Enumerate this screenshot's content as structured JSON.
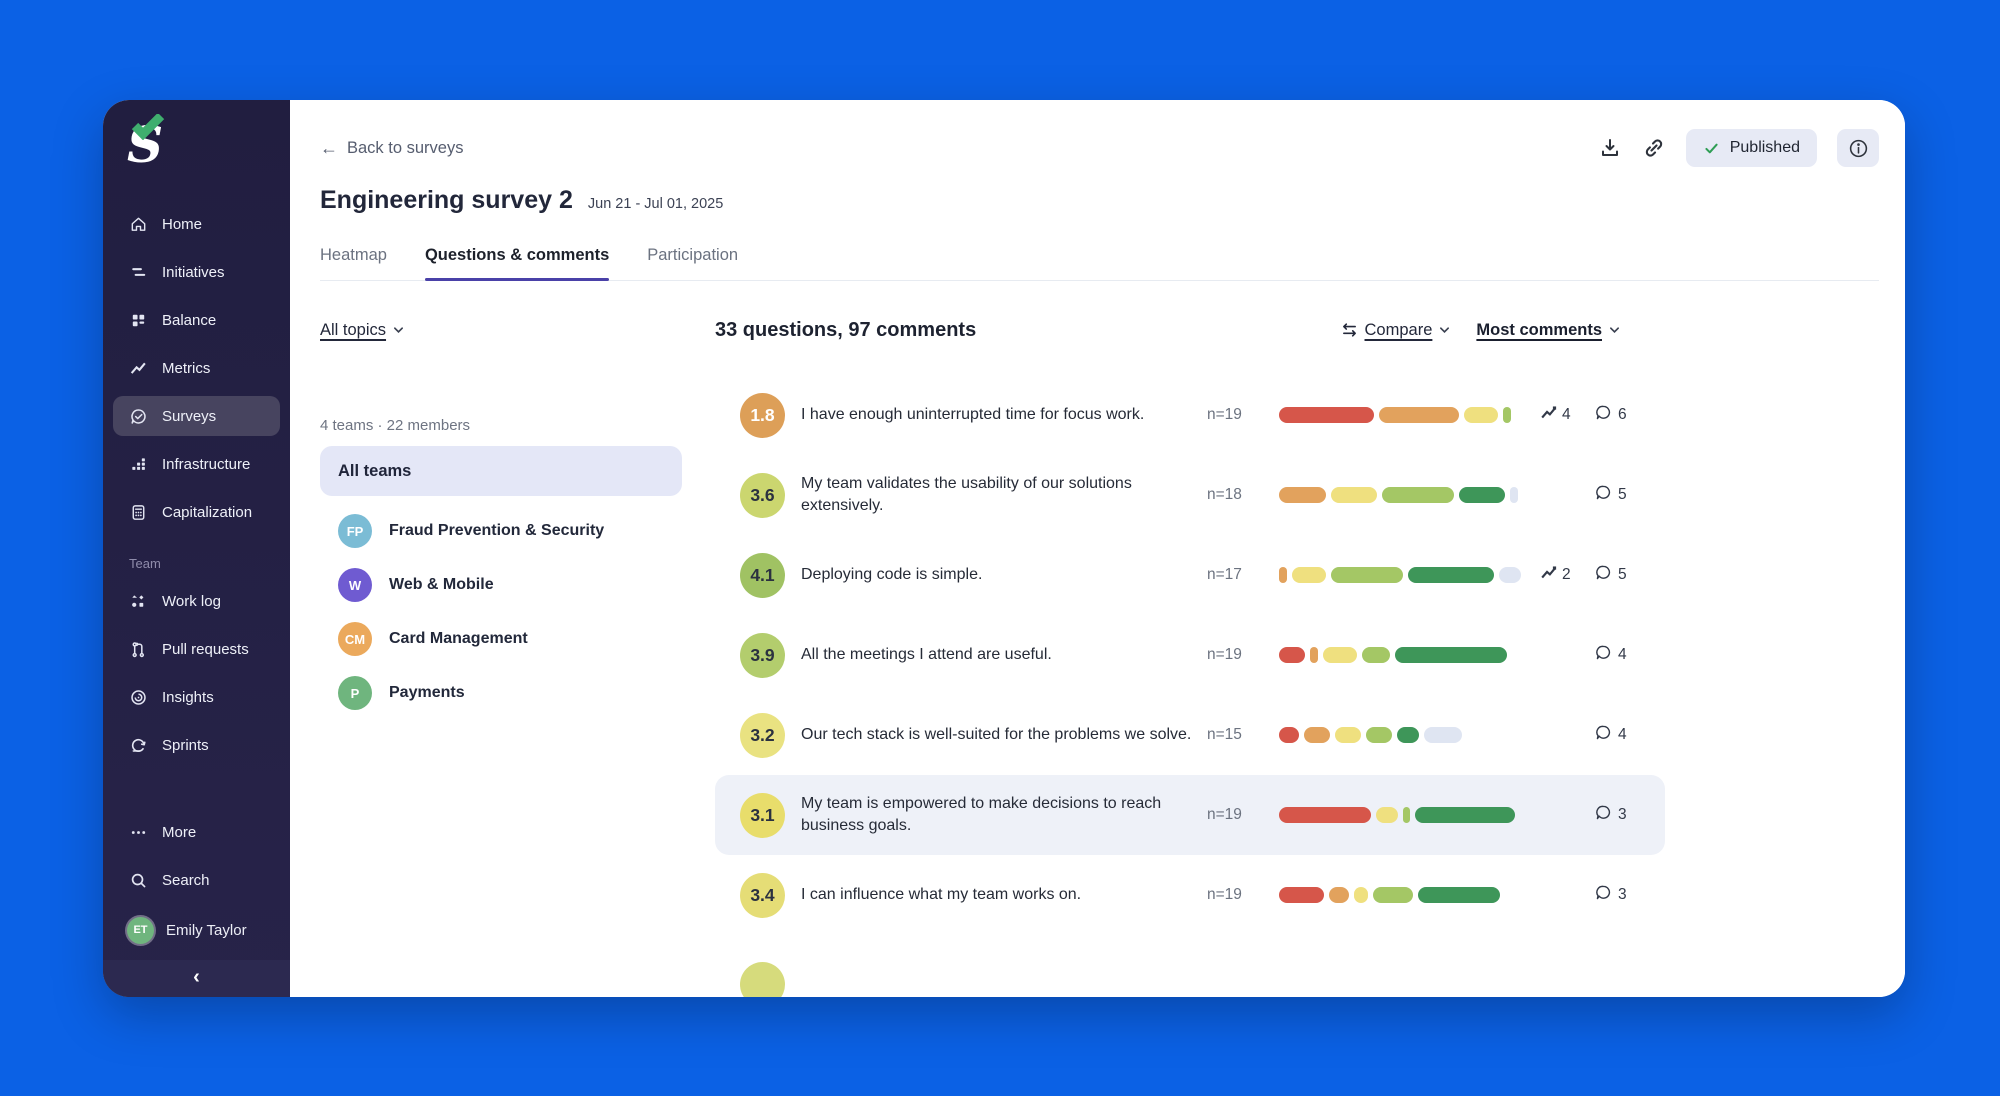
{
  "window": {
    "background_color": "#0b61e5",
    "card_color": "#ffffff"
  },
  "sidebar": {
    "bg_color": "#211e40",
    "active_item_bg": "#47445f",
    "logo": {
      "letter": "S",
      "check_color": "#3fae6e"
    },
    "nav_main": [
      {
        "label": "Home",
        "icon": "home-icon",
        "active": false
      },
      {
        "label": "Initiatives",
        "icon": "initiatives-icon",
        "active": false
      },
      {
        "label": "Balance",
        "icon": "balance-icon",
        "active": false
      },
      {
        "label": "Metrics",
        "icon": "metrics-icon",
        "active": false
      },
      {
        "label": "Surveys",
        "icon": "surveys-icon",
        "active": true
      },
      {
        "label": "Infrastructure",
        "icon": "infrastructure-icon",
        "active": false
      },
      {
        "label": "Capitalization",
        "icon": "capitalization-icon",
        "active": false
      }
    ],
    "team_section_label": "Team",
    "nav_team": [
      {
        "label": "Work log",
        "icon": "work-log-icon",
        "active": false
      },
      {
        "label": "Pull requests",
        "icon": "pull-requests-icon",
        "active": false
      },
      {
        "label": "Insights",
        "icon": "insights-icon",
        "active": false
      },
      {
        "label": "Sprints",
        "icon": "sprints-icon",
        "active": false
      }
    ],
    "nav_bottom": [
      {
        "label": "More",
        "icon": "more-icon",
        "active": false
      },
      {
        "label": "Search",
        "icon": "search-icon",
        "active": false
      }
    ],
    "user": {
      "name": "Emily Taylor",
      "initials": "ET",
      "avatar_color": "#6fb57e"
    },
    "collapse_icon": "chevron-left-icon"
  },
  "header": {
    "back_label": "Back to surveys",
    "title": "Engineering survey 2",
    "date_range": "Jun 21 - Jul 01, 2025",
    "actions": {
      "download_icon": "download-icon",
      "link_icon": "link-icon",
      "status_label": "Published",
      "status_check_color": "#2f9e55",
      "info_icon": "info-icon"
    },
    "tabs": [
      {
        "label": "Heatmap",
        "active": false
      },
      {
        "label": "Questions & comments",
        "active": true
      },
      {
        "label": "Participation",
        "active": false
      }
    ]
  },
  "toolbar": {
    "topics_filter": "All topics",
    "summary": "33 questions, 97 comments",
    "compare_label": "Compare",
    "sort_label": "Most comments"
  },
  "teams_panel": {
    "summary": "4 teams · 22 members",
    "all_teams_label": "All teams",
    "teams": [
      {
        "initials": "FP",
        "name": "Fraud Prevention & Security",
        "color": "#7bbcd5"
      },
      {
        "initials": "W",
        "name": "Web & Mobile",
        "color": "#6f5bd1"
      },
      {
        "initials": "CM",
        "name": "Card Management",
        "color": "#eba95c"
      },
      {
        "initials": "P",
        "name": "Payments",
        "color": "#6fb57e"
      }
    ]
  },
  "scale_colors": {
    "red": "#d6564a",
    "orange": "#e2a25d",
    "yellow": "#efe07f",
    "lightgreen": "#a4c765",
    "green": "#3e9659",
    "none": "#dfe5f2"
  },
  "questions": [
    {
      "score": "1.8",
      "badge_color": "#dd9f58",
      "badge_text_color": "#ffffff",
      "text": "I have enough uninterrupted time for focus work.",
      "n": "n=19",
      "segments": [
        [
          "red",
          95
        ],
        [
          "orange",
          80
        ],
        [
          "yellow",
          34
        ],
        [
          "lightgreen",
          8
        ]
      ],
      "trend": "4",
      "comments": "6",
      "highlighted": false
    },
    {
      "score": "3.6",
      "badge_color": "#cbd66f",
      "badge_text_color": "#2b3140",
      "text": "My team validates the usability of our solutions extensively.",
      "n": "n=18",
      "segments": [
        [
          "orange",
          47
        ],
        [
          "yellow",
          46
        ],
        [
          "lightgreen",
          72
        ],
        [
          "green",
          46
        ],
        [
          "none",
          8
        ]
      ],
      "trend": "",
      "comments": "5",
      "highlighted": false
    },
    {
      "score": "4.1",
      "badge_color": "#a0c263",
      "badge_text_color": "#2b3140",
      "text": "Deploying code is simple.",
      "n": "n=17",
      "segments": [
        [
          "orange",
          8
        ],
        [
          "yellow",
          34
        ],
        [
          "lightgreen",
          72
        ],
        [
          "green",
          86
        ],
        [
          "none",
          22
        ]
      ],
      "trend": "2",
      "comments": "5",
      "highlighted": false
    },
    {
      "score": "3.9",
      "badge_color": "#b3cd6d",
      "badge_text_color": "#2b3140",
      "text": "All the meetings I attend are useful.",
      "n": "n=19",
      "segments": [
        [
          "red",
          26
        ],
        [
          "orange",
          8
        ],
        [
          "yellow",
          34
        ],
        [
          "lightgreen",
          28
        ],
        [
          "green",
          112
        ]
      ],
      "trend": "",
      "comments": "4",
      "highlighted": false
    },
    {
      "score": "3.2",
      "badge_color": "#e9e281",
      "badge_text_color": "#2b3140",
      "text": "Our tech stack is well-suited for the problems we solve.",
      "n": "n=15",
      "segments": [
        [
          "red",
          20
        ],
        [
          "orange",
          26
        ],
        [
          "yellow",
          26
        ],
        [
          "lightgreen",
          26
        ],
        [
          "green",
          22
        ],
        [
          "none",
          38
        ]
      ],
      "trend": "",
      "comments": "4",
      "highlighted": false
    },
    {
      "score": "3.1",
      "badge_color": "#e8dd6b",
      "badge_text_color": "#2b3140",
      "text": "My team is empowered to make decisions to reach business goals.",
      "n": "n=19",
      "segments": [
        [
          "red",
          92
        ],
        [
          "yellow",
          22
        ],
        [
          "lightgreen",
          7
        ],
        [
          "green",
          100
        ]
      ],
      "trend": "",
      "comments": "3",
      "highlighted": true
    },
    {
      "score": "3.4",
      "badge_color": "#e5dd76",
      "badge_text_color": "#2b3140",
      "text": "I can influence what my team works on.",
      "n": "n=19",
      "segments": [
        [
          "red",
          45
        ],
        [
          "orange",
          20
        ],
        [
          "yellow",
          14
        ],
        [
          "lightgreen",
          40
        ],
        [
          "green",
          82
        ]
      ],
      "trend": "",
      "comments": "3",
      "highlighted": false
    }
  ],
  "partial_next_row": {
    "badge_color": "#d6db7c"
  }
}
